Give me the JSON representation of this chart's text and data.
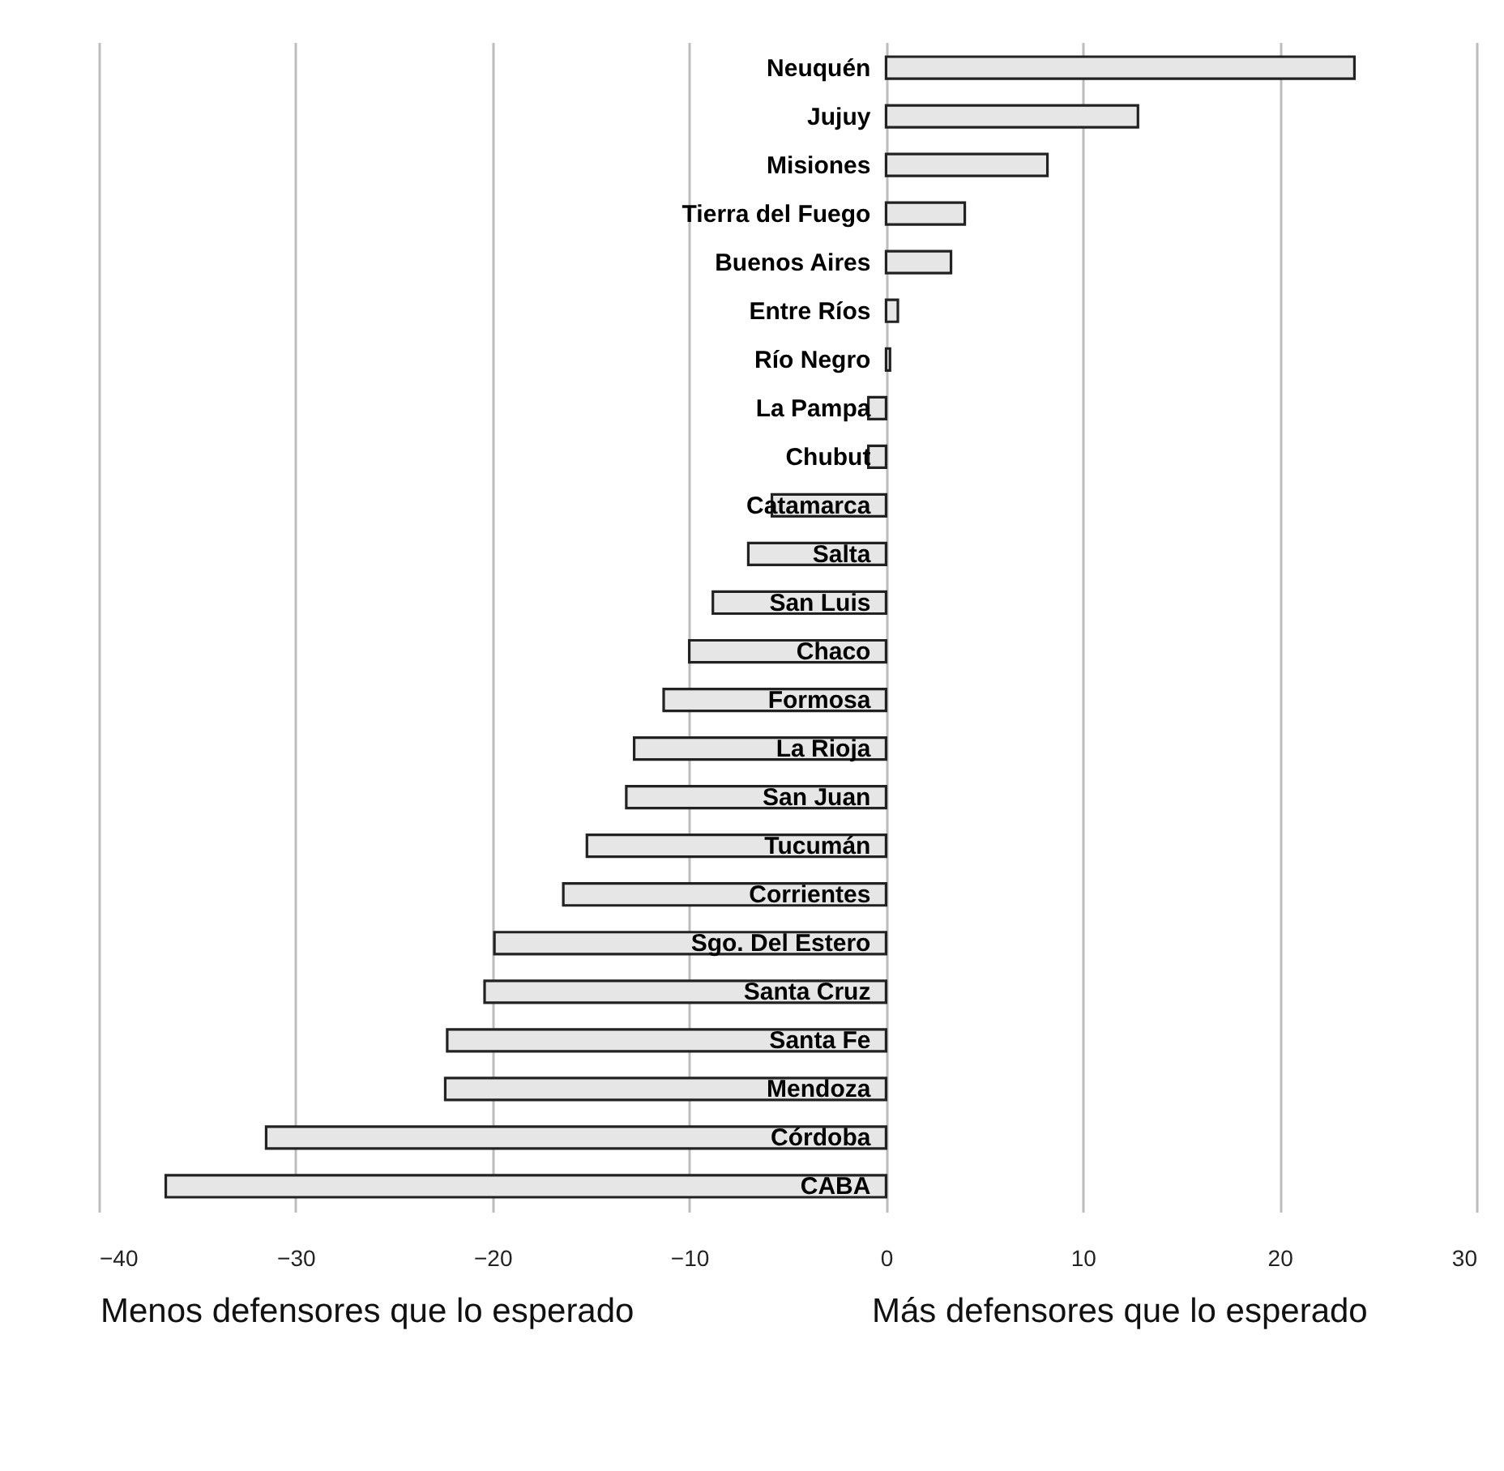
{
  "chart_data": {
    "type": "bar",
    "orientation": "horizontal",
    "categories": [
      "Neuquén",
      "Jujuy",
      "Misiones",
      "Tierra del Fuego",
      "Buenos Aires",
      "Entre Ríos",
      "Río Negro",
      "La Pampa",
      "Chubut",
      "Catamarca",
      "Salta",
      "San Luis",
      "Chaco",
      "Formosa",
      "La Rioja",
      "San Juan",
      "Tucumán",
      "Corrientes",
      "Sgo. Del Estero",
      "Santa Cruz",
      "Santa Fe",
      "Mendoza",
      "Córdoba",
      "CABA"
    ],
    "values": [
      23.8,
      12.8,
      8.2,
      4.0,
      3.3,
      0.6,
      0.2,
      -0.9,
      -0.9,
      -5.8,
      -7.0,
      -8.8,
      -10.0,
      -11.3,
      -12.8,
      -13.2,
      -15.2,
      -16.4,
      -19.9,
      -20.4,
      -22.3,
      -22.4,
      -31.5,
      -36.6
    ],
    "color": "#e6e6e6",
    "xlim": [
      -40,
      30
    ],
    "xticks": [
      -40,
      -30,
      -20,
      -10,
      0,
      10,
      20,
      30
    ],
    "grid": "x",
    "annotations": [
      "Menos defensores que lo esperado",
      "Más defensores que lo esperado"
    ]
  }
}
